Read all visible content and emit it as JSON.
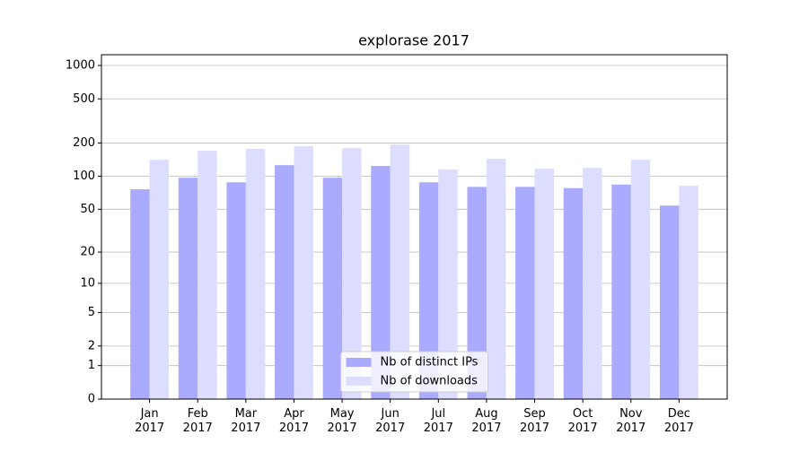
{
  "chart_data": {
    "type": "bar",
    "title": "explorase 2017",
    "categories": [
      "Jan 2017",
      "Feb 2017",
      "Mar 2017",
      "Apr 2017",
      "May 2017",
      "Jun 2017",
      "Jul 2017",
      "Aug 2017",
      "Sep 2017",
      "Oct 2017",
      "Nov 2017",
      "Dec 2017"
    ],
    "series": [
      {
        "name": "Nb of distinct IPs",
        "color": "#aaaaff",
        "values": [
          76,
          97,
          88,
          126,
          97,
          124,
          88,
          80,
          80,
          78,
          84,
          54
        ]
      },
      {
        "name": "Nb of downloads",
        "color": "#ddddff",
        "values": [
          141,
          170,
          177,
          187,
          180,
          194,
          115,
          144,
          117,
          119,
          141,
          82
        ]
      }
    ],
    "yscale": "log1p",
    "ylim": [
      0,
      1250
    ],
    "yticks": [
      0,
      1,
      2,
      5,
      10,
      20,
      50,
      100,
      200,
      500,
      1000
    ],
    "grid": true,
    "legend": "lower center"
  }
}
